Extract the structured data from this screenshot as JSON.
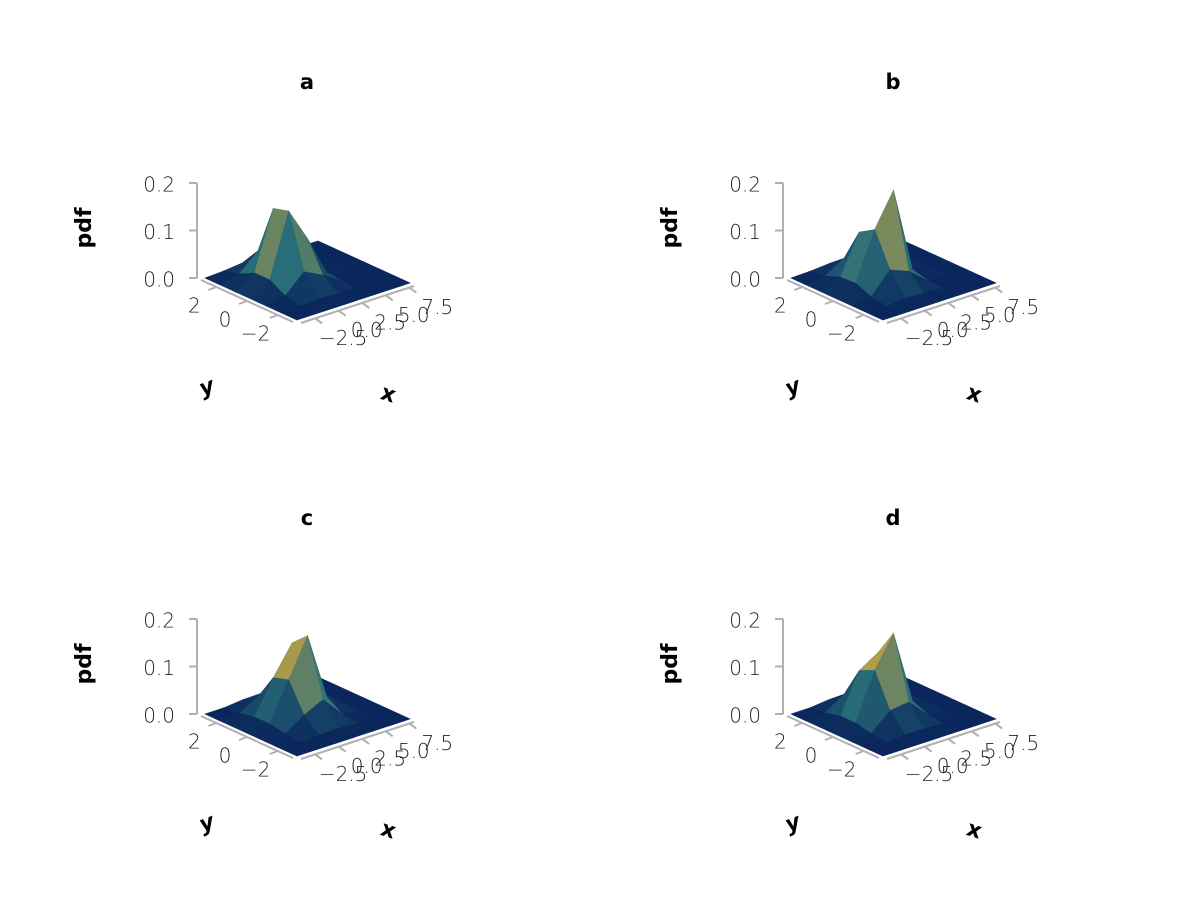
{
  "chart_data": [
    {
      "type": "surface",
      "title": "a",
      "xlabel": "x",
      "ylabel": "y",
      "zlabel": "pdf",
      "x": [
        -4,
        -2,
        0,
        2,
        4,
        6,
        8
      ],
      "y": [
        -3,
        -2,
        -1,
        0,
        1,
        2,
        3
      ],
      "z": [
        [
          0,
          0,
          0,
          0,
          0,
          0,
          0
        ],
        [
          0,
          0.001,
          0.004,
          0.002,
          0,
          0,
          0
        ],
        [
          0,
          0.008,
          0.046,
          0.026,
          0.001,
          0,
          0
        ],
        [
          0,
          0.027,
          0.159,
          0.088,
          0.005,
          0,
          0
        ],
        [
          0,
          0.027,
          0.15,
          0.08,
          0.005,
          0,
          0
        ],
        [
          0,
          0.01,
          0.046,
          0.022,
          0.001,
          0,
          0
        ],
        [
          0,
          0.002,
          0.006,
          0.002,
          0,
          0,
          0
        ]
      ],
      "xlim": [
        -4,
        8
      ],
      "ylim": [
        -3,
        3
      ],
      "zlim": [
        0,
        0.2
      ],
      "xticks": [
        {
          "value": -2.5,
          "label": "−2.5"
        },
        {
          "value": 0,
          "label": "0.0"
        },
        2.5,
        {
          "value": 5,
          "label": "5.0"
        },
        7.5
      ],
      "yticks": [
        {
          "value": -2,
          "label": "−2"
        },
        0,
        2
      ],
      "zticks": [
        {
          "value": 0,
          "label": "0.0"
        },
        0.1,
        0.2
      ]
    },
    {
      "type": "surface",
      "title": "b",
      "xlabel": "x",
      "ylabel": "y",
      "zlabel": "pdf",
      "x": [
        -4,
        -2,
        0,
        2,
        4,
        6,
        8
      ],
      "y": [
        -3,
        -2,
        -1,
        0,
        1,
        2,
        3
      ],
      "z": [
        [
          0,
          0,
          0,
          0,
          0,
          0,
          0
        ],
        [
          0,
          0.001,
          0.005,
          0.003,
          0,
          0,
          0
        ],
        [
          0,
          0.006,
          0.05,
          0.034,
          0.002,
          0,
          0
        ],
        [
          0,
          0.02,
          0.12,
          0.19,
          0.01,
          0,
          0
        ],
        [
          0,
          0.018,
          0.1,
          0.09,
          0.006,
          0,
          0
        ],
        [
          0,
          0.006,
          0.03,
          0.02,
          0.001,
          0,
          0
        ],
        [
          0,
          0.001,
          0.004,
          0.002,
          0,
          0,
          0
        ]
      ],
      "xlim": [
        -4,
        8
      ],
      "ylim": [
        -3,
        3
      ],
      "zlim": [
        0,
        0.2
      ],
      "xticks": [
        {
          "value": -2.5,
          "label": "−2.5"
        },
        {
          "value": 0,
          "label": "0.0"
        },
        2.5,
        {
          "value": 5,
          "label": "5.0"
        },
        7.5
      ],
      "yticks": [
        {
          "value": -2,
          "label": "−2"
        },
        0,
        2
      ],
      "zticks": [
        {
          "value": 0,
          "label": "0.0"
        },
        0.1,
        0.2
      ]
    },
    {
      "type": "surface",
      "title": "c",
      "xlabel": "x",
      "ylabel": "y",
      "zlabel": "pdf",
      "x": [
        -4,
        -2,
        0,
        2,
        4,
        6,
        8
      ],
      "y": [
        -3,
        -2,
        -1,
        0,
        1,
        2,
        3
      ],
      "z": [
        [
          0,
          0,
          0,
          0,
          0,
          0,
          0
        ],
        [
          0,
          0,
          0.003,
          0.005,
          0.001,
          0,
          0
        ],
        [
          0,
          0.004,
          0.03,
          0.05,
          0.008,
          0,
          0
        ],
        [
          0,
          0.01,
          0.09,
          0.17,
          0.03,
          0,
          0
        ],
        [
          0,
          0.01,
          0.08,
          0.14,
          0.025,
          0.001,
          0
        ],
        [
          0,
          0.003,
          0.025,
          0.04,
          0.006,
          0,
          0
        ],
        [
          0,
          0,
          0.004,
          0.005,
          0.001,
          0,
          0
        ]
      ],
      "xlim": [
        -4,
        8
      ],
      "ylim": [
        -3,
        3
      ],
      "zlim": [
        0,
        0.2
      ],
      "xticks": [
        {
          "value": -2.5,
          "label": "−2.5"
        },
        {
          "value": 0,
          "label": "0.0"
        },
        2.5,
        {
          "value": 5,
          "label": "5.0"
        },
        7.5
      ],
      "yticks": [
        {
          "value": -2,
          "label": "−2"
        },
        0,
        2
      ],
      "zticks": [
        {
          "value": 0,
          "label": "0.0"
        },
        0.1,
        0.2
      ]
    },
    {
      "type": "surface",
      "title": "d",
      "xlabel": "x",
      "ylabel": "y",
      "zlabel": "pdf",
      "x": [
        -4,
        -2,
        0,
        2,
        4,
        6,
        8
      ],
      "y": [
        -3,
        -2,
        -1,
        0,
        1,
        2,
        3
      ],
      "z": [
        [
          0,
          0,
          0,
          0,
          0,
          0,
          0
        ],
        [
          0,
          0,
          0.004,
          0.004,
          0.001,
          0,
          0
        ],
        [
          0,
          0.004,
          0.04,
          0.045,
          0.006,
          0,
          0
        ],
        [
          0,
          0.012,
          0.11,
          0.175,
          0.02,
          0,
          0
        ],
        [
          0,
          0.012,
          0.095,
          0.12,
          0.015,
          0,
          0
        ],
        [
          0,
          0.004,
          0.03,
          0.032,
          0.004,
          0,
          0
        ],
        [
          0,
          0,
          0.004,
          0.004,
          0,
          0,
          0
        ]
      ],
      "xlim": [
        -4,
        8
      ],
      "ylim": [
        -3,
        3
      ],
      "zlim": [
        0,
        0.2
      ],
      "xticks": [
        {
          "value": -2.5,
          "label": "−2.5"
        },
        {
          "value": 0,
          "label": "0.0"
        },
        2.5,
        {
          "value": 5,
          "label": "5.0"
        },
        7.5
      ],
      "yticks": [
        {
          "value": -2,
          "label": "−2"
        },
        0,
        2
      ],
      "zticks": [
        {
          "value": 0,
          "label": "0.0"
        },
        0.1,
        0.2
      ]
    }
  ]
}
